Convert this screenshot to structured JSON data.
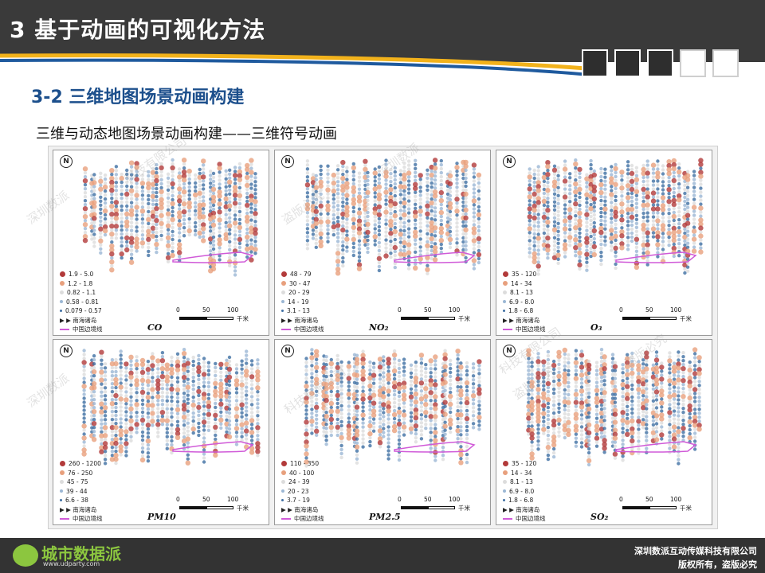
{
  "header": {
    "title": "3 基于动画的可视化方法",
    "nav_boxes": [
      false,
      false,
      false,
      true,
      true
    ]
  },
  "section_title": "3-2 三维地图场景动画构建",
  "subtitle": "三维与动态地图场景动画构建——三维符号动画",
  "panels": [
    {
      "pollutant": "CO",
      "legend": [
        "1.9 - 5.0",
        "1.2 - 1.8",
        "0.82 - 1.1",
        "0.58 - 0.81",
        "0.079 - 0.57"
      ]
    },
    {
      "pollutant": "NO₂",
      "legend": [
        "48 - 79",
        "30 - 47",
        "20 - 29",
        "14 - 19",
        "3.1 - 13"
      ]
    },
    {
      "pollutant": "O₃",
      "legend": [
        "35 - 120",
        "14 - 34",
        "8.1 - 13",
        "6.9 - 8.0",
        "1.8 - 6.8"
      ]
    },
    {
      "pollutant": "PM10",
      "legend": [
        "260 - 1200",
        "76 - 250",
        "45 - 75",
        "39 - 44",
        "6.6 - 38"
      ]
    },
    {
      "pollutant": "PM2.5",
      "legend": [
        "110 - 350",
        "40 - 100",
        "24 - 39",
        "20 - 23",
        "3.7 - 19"
      ]
    },
    {
      "pollutant": "SO₂",
      "legend": [
        "35 - 120",
        "14 - 34",
        "8.1 - 13",
        "6.9 - 8.0",
        "1.8 - 6.8"
      ]
    }
  ],
  "map_common": {
    "north_symbol": "N",
    "islands_label": "南海诸岛",
    "border_label": "中国边境线",
    "scale_ticks": [
      "0",
      "50",
      "100"
    ],
    "scale_unit": "千米"
  },
  "legend_colors": [
    "#b23a3a",
    "#e8a07d",
    "#dcdcdc",
    "#9bb7d4",
    "#3f6fa3"
  ],
  "watermark": {
    "lines": [
      "深圳数派",
      "科技有限公司",
      "盗版必究"
    ]
  },
  "footer": {
    "logo_text": "城市数据派",
    "logo_url": "www.udparty.com",
    "copyright_line1": "深圳数派互动传媒科技有限公司",
    "copyright_line2": "版权所有，盗版必究"
  }
}
